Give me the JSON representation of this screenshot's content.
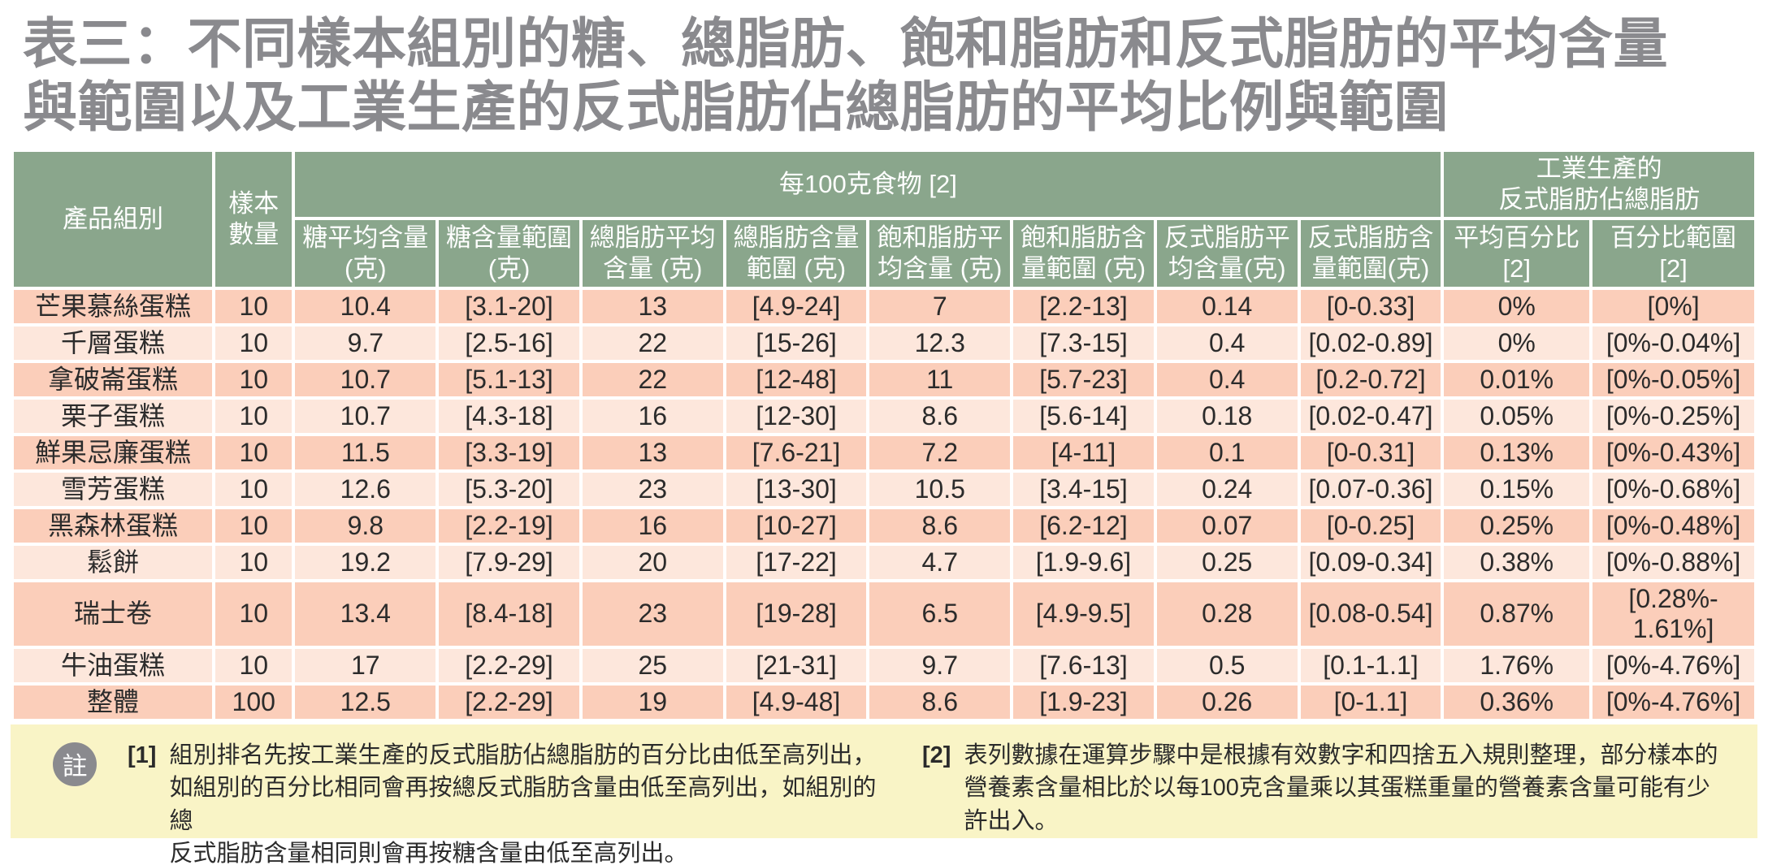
{
  "title": "表三：不同樣本組別的糖、總脂肪、飽和脂肪和反式脂肪的平均含量\n與範圍以及工業生產的反式脂肪佔總脂肪的平均比例與範圍",
  "colors": {
    "header_green": "#8aa68c",
    "row_dark": "#fbceba",
    "row_light": "#fde7dc",
    "note_yellow": "#f9f4c6",
    "title_gray": "#8a8a8e"
  },
  "chart_data": {
    "type": "table",
    "title": "表三：不同樣本組別的糖、總脂肪、飽和脂肪和反式脂肪的平均含量與範圍以及工業生產的反式脂肪佔總脂肪的平均比例與範圍",
    "columns": [
      "產品組別",
      "樣本數量",
      "糖平均含量 (克)",
      "糖含量範圍 (克)",
      "總脂肪平均含量 (克)",
      "總脂肪含量範圍 (克)",
      "飽和脂肪平均含量 (克)",
      "飽和脂肪含量範圍 (克)",
      "反式脂肪平均含量(克)",
      "反式脂肪含量範圍(克)",
      "平均百分比 [2]",
      "百分比範圍 [2]"
    ]
  },
  "table": {
    "header": {
      "product": "產品組別",
      "samples": "樣本\n數量",
      "per100g": "每100克食物 [2]",
      "industrial": "工業生產的\n反式脂肪佔總脂肪",
      "sub": [
        "糖平均含量\n(克)",
        "糖含量範圍\n(克)",
        "總脂肪平均\n含量 (克)",
        "總脂肪含量\n範圍 (克)",
        "飽和脂肪平\n均含量 (克)",
        "飽和脂肪含\n量範圍 (克)",
        "反式脂肪平\n均含量(克)",
        "反式脂肪含\n量範圍(克)",
        "平均百分比\n[2]",
        "百分比範圍\n[2]"
      ]
    },
    "rows": [
      [
        "芒果慕絲蛋糕",
        "10",
        "10.4",
        "[3.1-20]",
        "13",
        "[4.9-24]",
        "7",
        "[2.2-13]",
        "0.14",
        "[0-0.33]",
        "0%",
        "[0%]"
      ],
      [
        "千層蛋糕",
        "10",
        "9.7",
        "[2.5-16]",
        "22",
        "[15-26]",
        "12.3",
        "[7.3-15]",
        "0.4",
        "[0.02-0.89]",
        "0%",
        "[0%-0.04%]"
      ],
      [
        "拿破崙蛋糕",
        "10",
        "10.7",
        "[5.1-13]",
        "22",
        "[12-48]",
        "11",
        "[5.7-23]",
        "0.4",
        "[0.2-0.72]",
        "0.01%",
        "[0%-0.05%]"
      ],
      [
        "栗子蛋糕",
        "10",
        "10.7",
        "[4.3-18]",
        "16",
        "[12-30]",
        "8.6",
        "[5.6-14]",
        "0.18",
        "[0.02-0.47]",
        "0.05%",
        "[0%-0.25%]"
      ],
      [
        "鮮果忌廉蛋糕",
        "10",
        "11.5",
        "[3.3-19]",
        "13",
        "[7.6-21]",
        "7.2",
        "[4-11]",
        "0.1",
        "[0-0.31]",
        "0.13%",
        "[0%-0.43%]"
      ],
      [
        "雪芳蛋糕",
        "10",
        "12.6",
        "[5.3-20]",
        "23",
        "[13-30]",
        "10.5",
        "[3.4-15]",
        "0.24",
        "[0.07-0.36]",
        "0.15%",
        "[0%-0.68%]"
      ],
      [
        "黑森林蛋糕",
        "10",
        "9.8",
        "[2.2-19]",
        "16",
        "[10-27]",
        "8.6",
        "[6.2-12]",
        "0.07",
        "[0-0.25]",
        "0.25%",
        "[0%-0.48%]"
      ],
      [
        "鬆餅",
        "10",
        "19.2",
        "[7.9-29]",
        "20",
        "[17-22]",
        "4.7",
        "[1.9-9.6]",
        "0.25",
        "[0.09-0.34]",
        "0.38%",
        "[0%-0.88%]"
      ],
      [
        "瑞士卷",
        "10",
        "13.4",
        "[8.4-18]",
        "23",
        "[19-28]",
        "6.5",
        "[4.9-9.5]",
        "0.28",
        "[0.08-0.54]",
        "0.87%",
        "[0.28%-\n1.61%]"
      ],
      [
        "牛油蛋糕",
        "10",
        "17",
        "[2.2-29]",
        "25",
        "[21-31]",
        "9.7",
        "[7.6-13]",
        "0.5",
        "[0.1-1.1]",
        "1.76%",
        "[0%-4.76%]"
      ],
      [
        "整體",
        "100",
        "12.5",
        "[2.2-29]",
        "19",
        "[4.9-48]",
        "8.6",
        "[1.9-23]",
        "0.26",
        "[0-1.1]",
        "0.36%",
        "[0%-4.76%]"
      ]
    ]
  },
  "footnotes": {
    "badge": "註",
    "note1_marker": "[1]",
    "note1": "組別排名先按工業生產的反式脂肪佔總脂肪的百分比由低至高列出，\n如組別的百分比相同會再按總反式脂肪含量由低至高列出，如組別的總\n反式脂肪含量相同則會再按糖含量由低至高列出。",
    "note2_marker": "[2]",
    "note2": "表列數據在運算步驟中是根據有效數字和四捨五入規則整理，部分樣本的\n營養素含量相比於以每100克含量乘以其蛋糕重量的營養素含量可能有少\n許出入。"
  }
}
